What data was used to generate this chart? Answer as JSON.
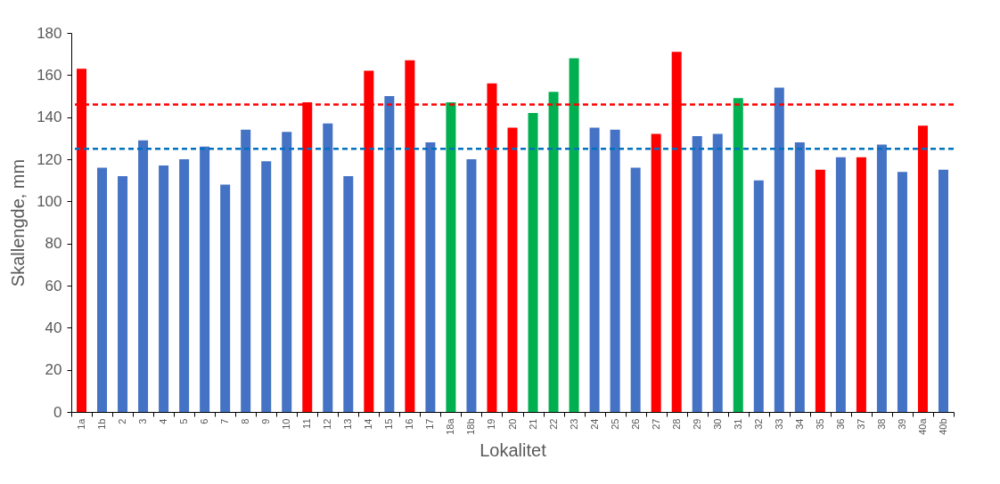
{
  "chart_data": {
    "type": "bar",
    "xlabel": "Lokalitet",
    "ylabel": "Skallengde, mm",
    "categories": [
      "1a",
      "1b",
      "2",
      "3",
      "4",
      "5",
      "6",
      "7",
      "8",
      "9",
      "10",
      "11",
      "12",
      "13",
      "14",
      "15",
      "16",
      "17",
      "18a",
      "18b",
      "19",
      "20",
      "21",
      "22",
      "23",
      "24",
      "25",
      "26",
      "27",
      "28",
      "29",
      "30",
      "31",
      "32",
      "33",
      "34",
      "35",
      "36",
      "37",
      "38",
      "39",
      "40a",
      "40b"
    ],
    "values": [
      163,
      116,
      112,
      129,
      117,
      120,
      126,
      108,
      134,
      119,
      133,
      147,
      137,
      112,
      162,
      150,
      167,
      128,
      147,
      120,
      156,
      135,
      142,
      152,
      168,
      135,
      134,
      116,
      132,
      171,
      131,
      132,
      149,
      110,
      154,
      128,
      115,
      121,
      121,
      127,
      114,
      136,
      115
    ],
    "colors": [
      "#ff0000",
      "#4472c4",
      "#4472c4",
      "#4472c4",
      "#4472c4",
      "#4472c4",
      "#4472c4",
      "#4472c4",
      "#4472c4",
      "#4472c4",
      "#4472c4",
      "#ff0000",
      "#4472c4",
      "#4472c4",
      "#ff0000",
      "#4472c4",
      "#ff0000",
      "#4472c4",
      "#00b050",
      "#4472c4",
      "#ff0000",
      "#ff0000",
      "#00b050",
      "#00b050",
      "#00b050",
      "#4472c4",
      "#4472c4",
      "#4472c4",
      "#ff0000",
      "#ff0000",
      "#4472c4",
      "#4472c4",
      "#00b050",
      "#4472c4",
      "#4472c4",
      "#4472c4",
      "#ff0000",
      "#4472c4",
      "#ff0000",
      "#4472c4",
      "#4472c4",
      "#ff0000",
      "#4472c4"
    ],
    "ylim": [
      0,
      180
    ],
    "yticks": [
      0,
      20,
      40,
      60,
      80,
      100,
      120,
      140,
      160,
      180
    ],
    "ref_lines": [
      {
        "axis": "y",
        "value": 146,
        "color": "#ff0000",
        "line_style": "dashed"
      },
      {
        "axis": "y",
        "value": 125,
        "color": "#0070c0",
        "line_style": "dashed"
      }
    ]
  }
}
